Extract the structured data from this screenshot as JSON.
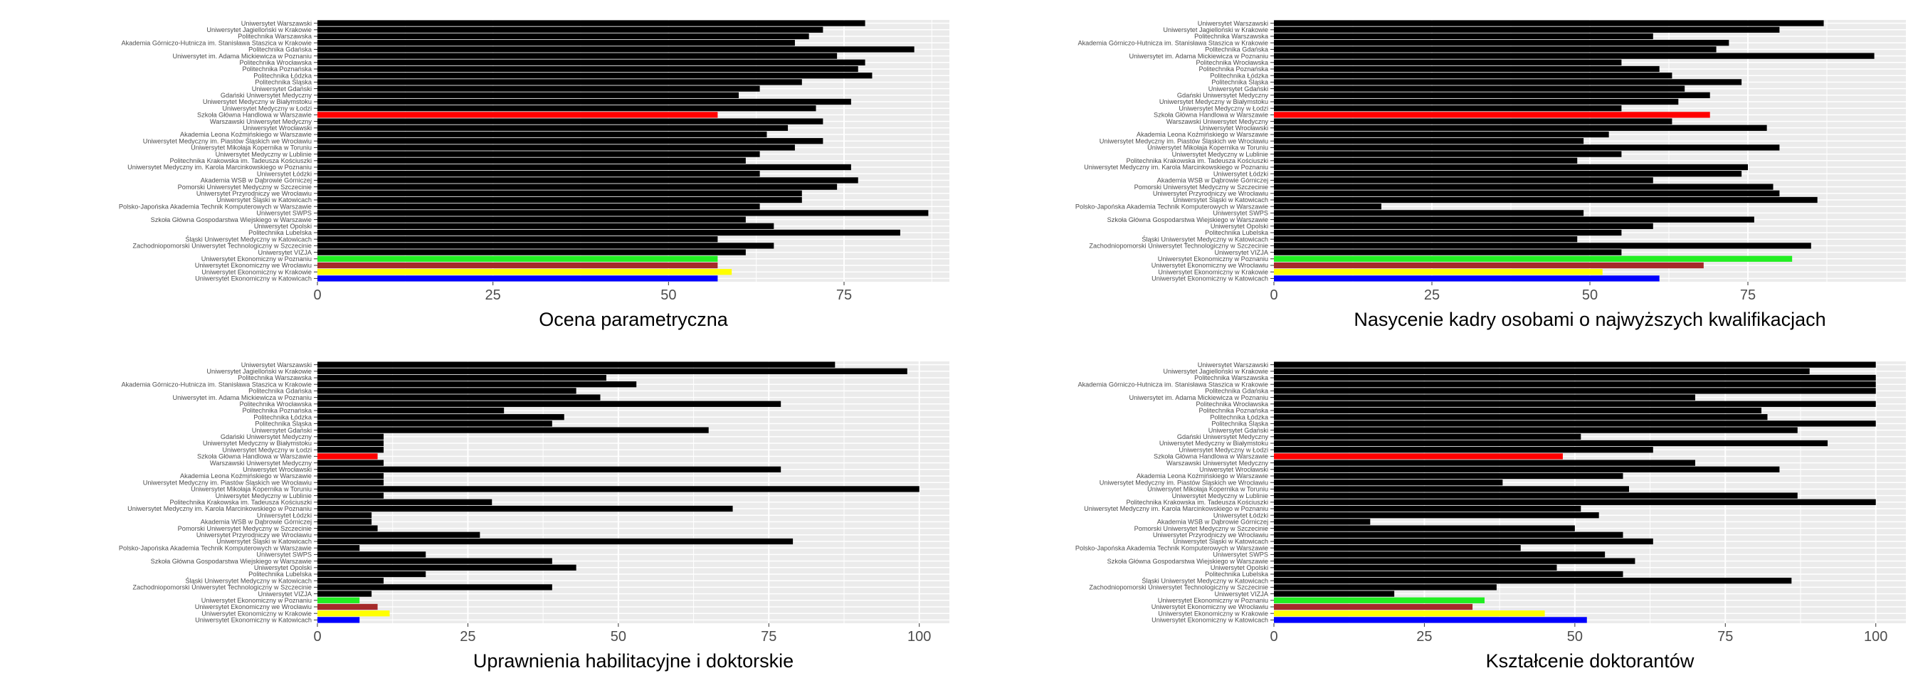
{
  "chart_data": [
    {
      "type": "bar",
      "orientation": "horizontal",
      "xlabel": "Ocena parametryczna",
      "xlim": [
        0,
        90
      ],
      "xticks": [
        0,
        25,
        50,
        75
      ],
      "grid": true,
      "categories": [
        "Uniwersytet Warszawski",
        "Uniwersytet Jagielloński w Krakowie",
        "Politechnika Warszawska",
        "Akademia Górniczo-Hutnicza im. Stanisława Staszica w Krakowie",
        "Politechnika Gdańska",
        "Uniwersytet im. Adama Mickiewicza w Poznaniu",
        "Politechnika Wrocławska",
        "Politechnika Poznańska",
        "Politechnika Łódzka",
        "Politechnika Śląska",
        "Uniwersytet Gdański",
        "Gdański Uniwersytet Medyczny",
        "Uniwersytet Medyczny w Białymstoku",
        "Uniwersytet Medyczny w Łodzi",
        "Szkoła Główna Handlowa w Warszawie",
        "Warszawski Uniwersytet Medyczny",
        "Uniwersytet Wrocławski",
        "Akademia Leona Koźmińskiego w Warszawie",
        "Uniwersytet Medyczny im. Piastów Śląskich we Wrocławiu",
        "Uniwersytet Mikołaja Kopernika w Toruniu",
        "Uniwersytet Medyczny w Lublinie",
        "Politechnika Krakowska im. Tadeusza Kościuszki",
        "Uniwersytet Medyczny im. Karola Marcinkowskiego w Poznaniu",
        "Uniwersytet Łódzki",
        "Akademia WSB w Dąbrowie Górniczej",
        "Pomorski Uniwersytet Medyczny w Szczecinie",
        "Uniwersytet Przyrodniczy we Wrocławiu",
        "Uniwersytet Śląski w Katowicach",
        "Polsko-Japońska Akademia Technik Komputerowych w Warszawie",
        "Uniwersytet SWPS",
        "Szkoła Główna Gospodarstwa Wiejskiego w Warszawie",
        "Uniwersytet Opolski",
        "Politechnika Lubelska",
        "Śląski Uniwersytet Medyczny w Katowicach",
        "Zachodniopomorski Uniwersytet Technologiczny w Szczecinie",
        "Uniwersytet VIZJA",
        "Uniwersytet Ekonomiczny w Poznaniu",
        "Uniwersytet Ekonomiczny we Wrocławiu",
        "Uniwersytet Ekonomiczny w Krakowie",
        "Uniwersytet Ekonomiczny w Katowicach"
      ],
      "values": [
        78,
        72,
        70,
        68,
        85,
        74,
        78,
        77,
        79,
        69,
        63,
        60,
        76,
        71,
        57,
        72,
        67,
        64,
        72,
        68,
        63,
        61,
        76,
        63,
        77,
        74,
        69,
        69,
        63,
        87,
        61,
        65,
        83,
        57,
        65,
        61,
        57,
        57,
        59,
        57
      ],
      "bar_colors": [
        "#000000",
        "#000000",
        "#000000",
        "#000000",
        "#000000",
        "#000000",
        "#000000",
        "#000000",
        "#000000",
        "#000000",
        "#000000",
        "#000000",
        "#000000",
        "#000000",
        "#ff0000",
        "#000000",
        "#000000",
        "#000000",
        "#000000",
        "#000000",
        "#000000",
        "#000000",
        "#000000",
        "#000000",
        "#000000",
        "#000000",
        "#000000",
        "#000000",
        "#000000",
        "#000000",
        "#000000",
        "#000000",
        "#000000",
        "#000000",
        "#000000",
        "#000000",
        "#22ee22",
        "#a52a2a",
        "#ffff00",
        "#0000ff"
      ]
    },
    {
      "type": "bar",
      "orientation": "horizontal",
      "xlabel": "Nasycenie kadry osobami o najwyższych kwalifikacjach",
      "xlim": [
        0,
        100
      ],
      "xticks": [
        0,
        25,
        50,
        75
      ],
      "grid": true,
      "categories": [
        "Uniwersytet Warszawski",
        "Uniwersytet Jagielloński w Krakowie",
        "Politechnika Warszawska",
        "Akademia Górniczo-Hutnicza im. Stanisława Staszica w Krakowie",
        "Politechnika Gdańska",
        "Uniwersytet im. Adama Mickiewicza w Poznaniu",
        "Politechnika Wrocławska",
        "Politechnika Poznańska",
        "Politechnika Łódzka",
        "Politechnika Śląska",
        "Uniwersytet Gdański",
        "Gdański Uniwersytet Medyczny",
        "Uniwersytet Medyczny w Białymstoku",
        "Uniwersytet Medyczny w Łodzi",
        "Szkoła Główna Handlowa w Warszawie",
        "Warszawski Uniwersytet Medyczny",
        "Uniwersytet Wrocławski",
        "Akademia Leona Koźmińskiego w Warszawie",
        "Uniwersytet Medyczny im. Piastów Śląskich we Wrocławiu",
        "Uniwersytet Mikołaja Kopernika w Toruniu",
        "Uniwersytet Medyczny w Lublinie",
        "Politechnika Krakowska im. Tadeusza Kościuszki",
        "Uniwersytet Medyczny im. Karola Marcinkowskiego w Poznaniu",
        "Uniwersytet Łódzki",
        "Akademia WSB w Dąbrowie Górniczej",
        "Pomorski Uniwersytet Medyczny w Szczecinie",
        "Uniwersytet Przyrodniczy we Wrocławiu",
        "Uniwersytet Śląski w Katowicach",
        "Polsko-Japońska Akademia Technik Komputerowych w Warszawie",
        "Uniwersytet SWPS",
        "Szkoła Główna Gospodarstwa Wiejskiego w Warszawie",
        "Uniwersytet Opolski",
        "Politechnika Lubelska",
        "Śląski Uniwersytet Medyczny w Katowicach",
        "Zachodniopomorski Uniwersytet Technologiczny w Szczecinie",
        "Uniwersytet VIZJA",
        "Uniwersytet Ekonomiczny w Poznaniu",
        "Uniwersytet Ekonomiczny we Wrocławiu",
        "Uniwersytet Ekonomiczny w Krakowie",
        "Uniwersytet Ekonomiczny w Katowicach"
      ],
      "values": [
        87,
        80,
        60,
        72,
        70,
        95,
        55,
        61,
        63,
        74,
        65,
        69,
        64,
        55,
        69,
        63,
        78,
        53,
        49,
        80,
        55,
        48,
        75,
        74,
        60,
        79,
        80,
        86,
        17,
        49,
        76,
        60,
        55,
        48,
        85,
        55,
        82,
        68,
        52,
        61
      ],
      "bar_colors": [
        "#000000",
        "#000000",
        "#000000",
        "#000000",
        "#000000",
        "#000000",
        "#000000",
        "#000000",
        "#000000",
        "#000000",
        "#000000",
        "#000000",
        "#000000",
        "#000000",
        "#ff0000",
        "#000000",
        "#000000",
        "#000000",
        "#000000",
        "#000000",
        "#000000",
        "#000000",
        "#000000",
        "#000000",
        "#000000",
        "#000000",
        "#000000",
        "#000000",
        "#000000",
        "#000000",
        "#000000",
        "#000000",
        "#000000",
        "#000000",
        "#000000",
        "#000000",
        "#22ee22",
        "#a52a2a",
        "#ffff00",
        "#0000ff"
      ]
    },
    {
      "type": "bar",
      "orientation": "horizontal",
      "xlabel": "Uprawnienia habilitacyjne i doktorskie",
      "xlim": [
        0,
        105
      ],
      "xticks": [
        0,
        25,
        50,
        75,
        100
      ],
      "grid": true,
      "categories": [
        "Uniwersytet Warszawski",
        "Uniwersytet Jagielloński w Krakowie",
        "Politechnika Warszawska",
        "Akademia Górniczo-Hutnicza im. Stanisława Staszica w Krakowie",
        "Politechnika Gdańska",
        "Uniwersytet im. Adama Mickiewicza w Poznaniu",
        "Politechnika Wrocławska",
        "Politechnika Poznańska",
        "Politechnika Łódzka",
        "Politechnika Śląska",
        "Uniwersytet Gdański",
        "Gdański Uniwersytet Medyczny",
        "Uniwersytet Medyczny w Białymstoku",
        "Uniwersytet Medyczny w Łodzi",
        "Szkoła Główna Handlowa w Warszawie",
        "Warszawski Uniwersytet Medyczny",
        "Uniwersytet Wrocławski",
        "Akademia Leona Koźmińskiego w Warszawie",
        "Uniwersytet Medyczny im. Piastów Śląskich we Wrocławiu",
        "Uniwersytet Mikołaja Kopernika w Toruniu",
        "Uniwersytet Medyczny w Lublinie",
        "Politechnika Krakowska im. Tadeusza Kościuszki",
        "Uniwersytet Medyczny im. Karola Marcinkowskiego w Poznaniu",
        "Uniwersytet Łódzki",
        "Akademia WSB w Dąbrowie Górniczej",
        "Pomorski Uniwersytet Medyczny w Szczecinie",
        "Uniwersytet Przyrodniczy we Wrocławiu",
        "Uniwersytet Śląski w Katowicach",
        "Polsko-Japońska Akademia Technik Komputerowych w Warszawie",
        "Uniwersytet SWPS",
        "Szkoła Główna Gospodarstwa Wiejskiego w Warszawie",
        "Uniwersytet Opolski",
        "Politechnika Lubelska",
        "Śląski Uniwersytet Medyczny w Katowicach",
        "Zachodniopomorski Uniwersytet Technologiczny w Szczecinie",
        "Uniwersytet VIZJA",
        "Uniwersytet Ekonomiczny w Poznaniu",
        "Uniwersytet Ekonomiczny we Wrocławiu",
        "Uniwersytet Ekonomiczny w Krakowie",
        "Uniwersytet Ekonomiczny w Katowicach"
      ],
      "values": [
        86,
        98,
        48,
        53,
        43,
        47,
        77,
        31,
        41,
        39,
        65,
        11,
        11,
        11,
        10,
        11,
        77,
        11,
        11,
        100,
        11,
        29,
        69,
        9,
        9,
        10,
        27,
        79,
        7,
        18,
        39,
        43,
        18,
        11,
        39,
        9,
        7,
        10,
        12,
        7
      ],
      "bar_colors": [
        "#000000",
        "#000000",
        "#000000",
        "#000000",
        "#000000",
        "#000000",
        "#000000",
        "#000000",
        "#000000",
        "#000000",
        "#000000",
        "#000000",
        "#000000",
        "#000000",
        "#ff0000",
        "#000000",
        "#000000",
        "#000000",
        "#000000",
        "#000000",
        "#000000",
        "#000000",
        "#000000",
        "#000000",
        "#000000",
        "#000000",
        "#000000",
        "#000000",
        "#000000",
        "#000000",
        "#000000",
        "#000000",
        "#000000",
        "#000000",
        "#000000",
        "#000000",
        "#22ee22",
        "#a52a2a",
        "#ffff00",
        "#0000ff"
      ]
    },
    {
      "type": "bar",
      "orientation": "horizontal",
      "xlabel": "Kształcenie doktorantów",
      "xlim": [
        0,
        105
      ],
      "xticks": [
        0,
        25,
        50,
        75,
        100
      ],
      "grid": true,
      "categories": [
        "Uniwersytet Warszawski",
        "Uniwersytet Jagielloński w Krakowie",
        "Politechnika Warszawska",
        "Akademia Górniczo-Hutnicza im. Stanisława Staszica w Krakowie",
        "Politechnika Gdańska",
        "Uniwersytet im. Adama Mickiewicza w Poznaniu",
        "Politechnika Wrocławska",
        "Politechnika Poznańska",
        "Politechnika Łódzka",
        "Politechnika Śląska",
        "Uniwersytet Gdański",
        "Gdański Uniwersytet Medyczny",
        "Uniwersytet Medyczny w Białymstoku",
        "Uniwersytet Medyczny w Łodzi",
        "Szkoła Główna Handlowa w Warszawie",
        "Warszawski Uniwersytet Medyczny",
        "Uniwersytet Wrocławski",
        "Akademia Leona Koźmińskiego w Warszawie",
        "Uniwersytet Medyczny im. Piastów Śląskich we Wrocławiu",
        "Uniwersytet Mikołaja Kopernika w Toruniu",
        "Uniwersytet Medyczny w Lublinie",
        "Politechnika Krakowska im. Tadeusza Kościuszki",
        "Uniwersytet Medyczny im. Karola Marcinkowskiego w Poznaniu",
        "Uniwersytet Łódzki",
        "Akademia WSB w Dąbrowie Górniczej",
        "Pomorski Uniwersytet Medyczny w Szczecinie",
        "Uniwersytet Przyrodniczy we Wrocławiu",
        "Uniwersytet Śląski w Katowicach",
        "Polsko-Japońska Akademia Technik Komputerowych w Warszawie",
        "Uniwersytet SWPS",
        "Szkoła Główna Gospodarstwa Wiejskiego w Warszawie",
        "Uniwersytet Opolski",
        "Politechnika Lubelska",
        "Śląski Uniwersytet Medyczny w Katowicach",
        "Zachodniopomorski Uniwersytet Technologiczny w Szczecinie",
        "Uniwersytet VIZJA",
        "Uniwersytet Ekonomiczny w Poznaniu",
        "Uniwersytet Ekonomiczny we Wrocławiu",
        "Uniwersytet Ekonomiczny w Krakowie",
        "Uniwersytet Ekonomiczny w Katowicach"
      ],
      "values": [
        100,
        89,
        100,
        100,
        100,
        70,
        100,
        81,
        82,
        100,
        87,
        51,
        92,
        63,
        48,
        70,
        84,
        58,
        38,
        59,
        87,
        100,
        51,
        54,
        16,
        50,
        58,
        63,
        41,
        55,
        60,
        47,
        58,
        86,
        37,
        20,
        35,
        33,
        45,
        52
      ],
      "bar_colors": [
        "#000000",
        "#000000",
        "#000000",
        "#000000",
        "#000000",
        "#000000",
        "#000000",
        "#000000",
        "#000000",
        "#000000",
        "#000000",
        "#000000",
        "#000000",
        "#000000",
        "#ff0000",
        "#000000",
        "#000000",
        "#000000",
        "#000000",
        "#000000",
        "#000000",
        "#000000",
        "#000000",
        "#000000",
        "#000000",
        "#000000",
        "#000000",
        "#000000",
        "#000000",
        "#000000",
        "#000000",
        "#000000",
        "#000000",
        "#000000",
        "#000000",
        "#000000",
        "#22ee22",
        "#a52a2a",
        "#ffff00",
        "#0000ff"
      ]
    }
  ]
}
